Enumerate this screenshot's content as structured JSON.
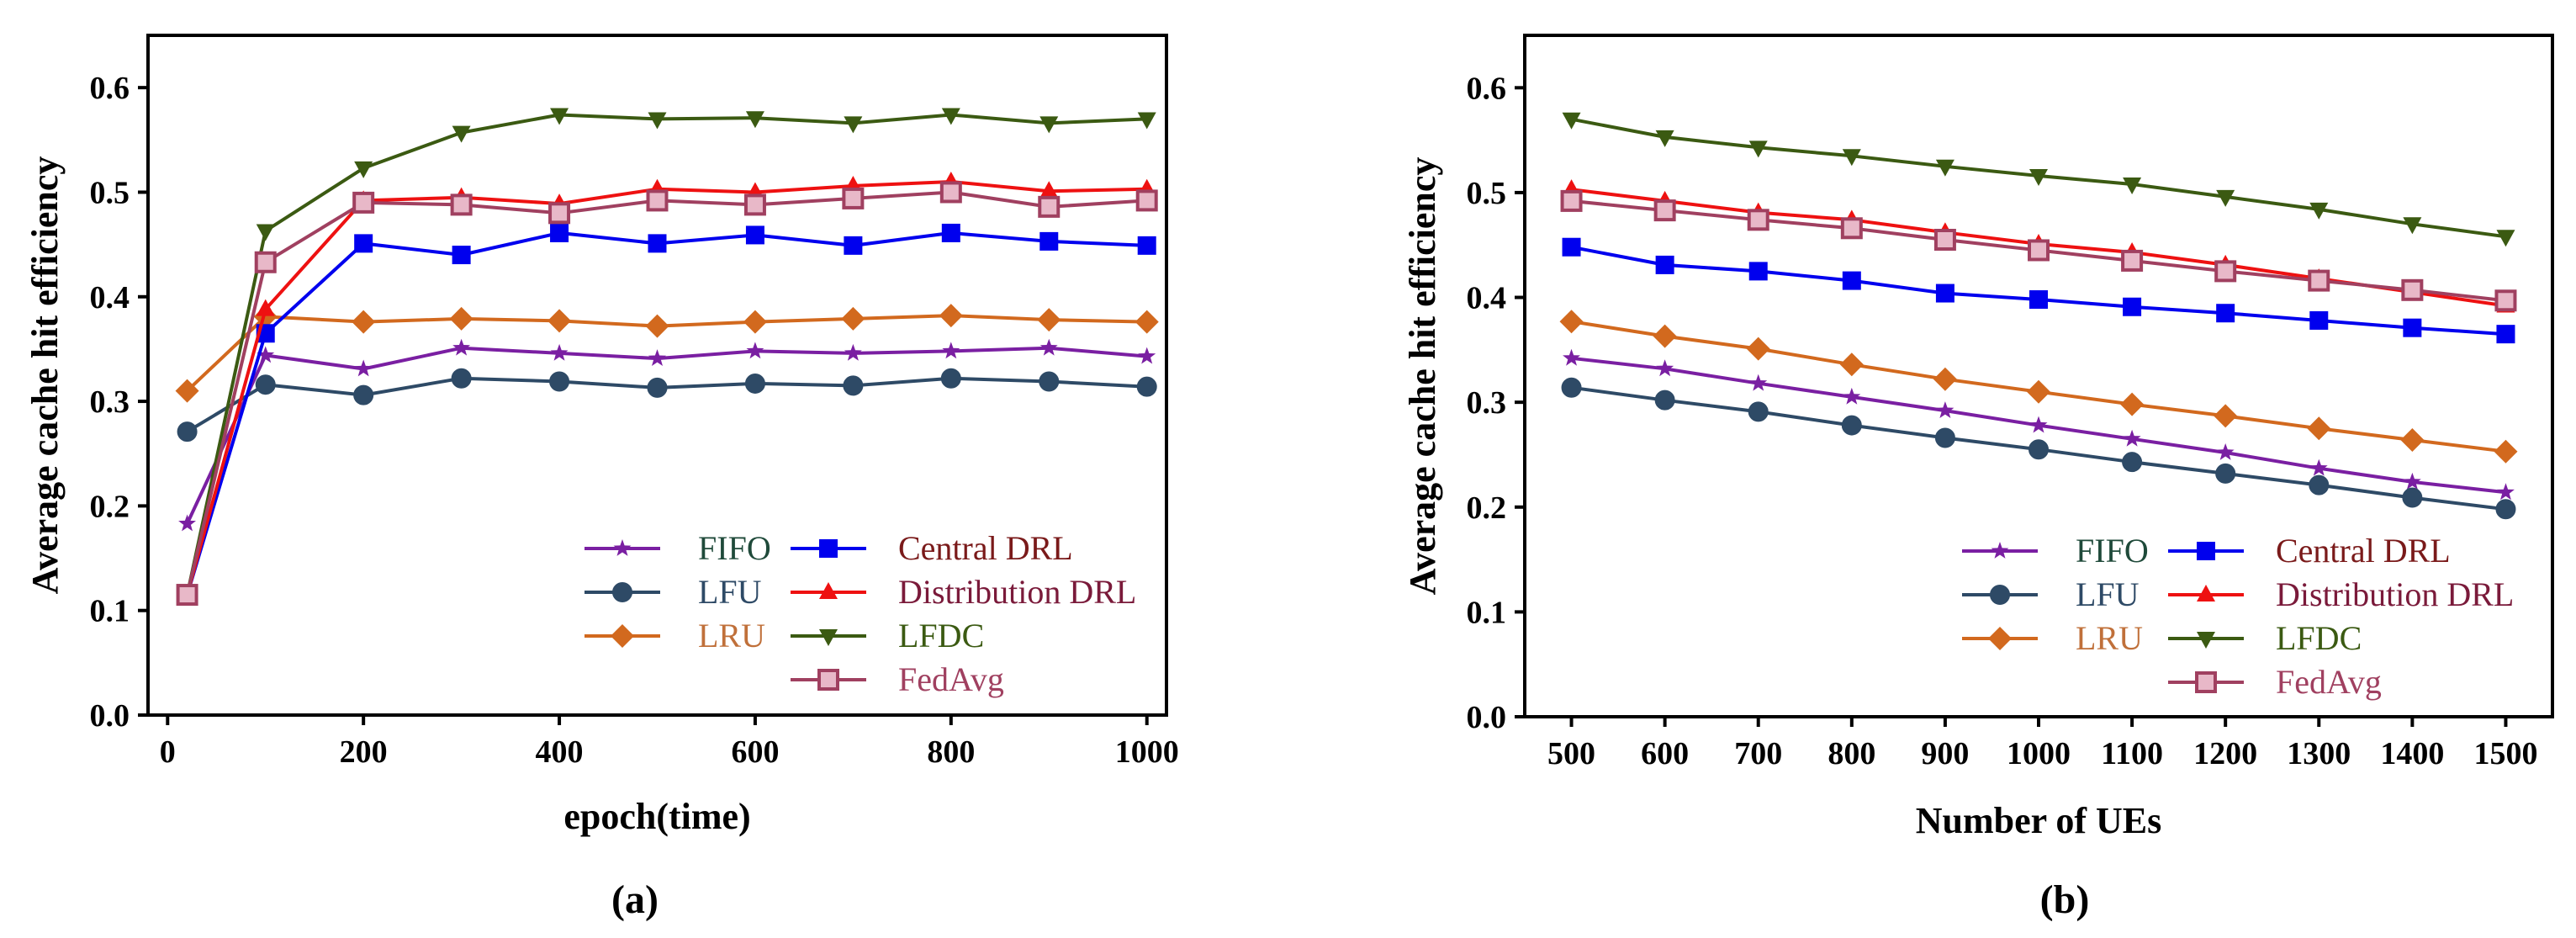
{
  "chart_data": [
    {
      "type": "line",
      "panel_label": "(a)",
      "xlabel": "epoch(time)",
      "ylabel": "Average cache hit efficiency",
      "xlim": [
        -20,
        1020
      ],
      "ylim": [
        0,
        0.65
      ],
      "xticks": [
        0,
        200,
        400,
        600,
        800,
        1000
      ],
      "xtick_labels": [
        "0",
        "200",
        "400",
        "600",
        "800",
        "1000"
      ],
      "yticks": [
        0,
        0.1,
        0.2,
        0.3,
        0.4,
        0.5,
        0.6
      ],
      "ytick_labels": [
        "0.0",
        "0.1",
        "0.2",
        "0.3",
        "0.4",
        "0.5",
        "0.6"
      ],
      "legend_position": "bottom-right",
      "x": [
        20,
        100,
        200,
        300,
        400,
        500,
        600,
        700,
        800,
        900,
        1000
      ],
      "series": [
        {
          "name": "FIFO",
          "color": "#7a1fa2",
          "marker": "star",
          "values": [
            0.183,
            0.344,
            0.331,
            0.351,
            0.346,
            0.341,
            0.348,
            0.346,
            0.348,
            0.351,
            0.343
          ]
        },
        {
          "name": "LFU",
          "color": "#2e4a66",
          "marker": "circle",
          "values": [
            0.271,
            0.316,
            0.306,
            0.322,
            0.319,
            0.313,
            0.317,
            0.315,
            0.322,
            0.319,
            0.314
          ]
        },
        {
          "name": "LRU",
          "color": "#d2691e",
          "marker": "diamond",
          "values": [
            0.31,
            0.381,
            0.376,
            0.379,
            0.377,
            0.372,
            0.376,
            0.379,
            0.382,
            0.378,
            0.376
          ]
        },
        {
          "name": "Central DRL",
          "color": "#0000ee",
          "marker": "square",
          "values": [
            0.115,
            0.365,
            0.451,
            0.44,
            0.461,
            0.451,
            0.459,
            0.449,
            0.461,
            0.453,
            0.449
          ]
        },
        {
          "name": "Distribution DRL",
          "color": "#ee1111",
          "marker": "triangle-up",
          "values": [
            0.115,
            0.388,
            0.492,
            0.495,
            0.489,
            0.503,
            0.5,
            0.506,
            0.51,
            0.501,
            0.503
          ]
        },
        {
          "name": "LFDC",
          "color": "#3b5a12",
          "marker": "triangle-down",
          "values": [
            0.115,
            0.463,
            0.523,
            0.557,
            0.574,
            0.57,
            0.571,
            0.566,
            0.574,
            0.566,
            0.57
          ]
        },
        {
          "name": "FedAvg",
          "color": "#a04060",
          "marker": "square-open",
          "values": [
            0.115,
            0.433,
            0.49,
            0.488,
            0.48,
            0.492,
            0.488,
            0.494,
            0.5,
            0.486,
            0.492
          ]
        }
      ]
    },
    {
      "type": "line",
      "panel_label": "(b)",
      "xlabel": "Number of UEs",
      "ylabel": "Average cache hit efficiency",
      "xlim": [
        450,
        1550
      ],
      "ylim": [
        0,
        0.65
      ],
      "xticks": [
        500,
        600,
        700,
        800,
        900,
        1000,
        1100,
        1200,
        1300,
        1400,
        1500
      ],
      "xtick_labels": [
        "500",
        "600",
        "700",
        "800",
        "900",
        "1000",
        "1100",
        "1200",
        "1300",
        "1400",
        "1500"
      ],
      "yticks": [
        0,
        0.1,
        0.2,
        0.3,
        0.4,
        0.5,
        0.6
      ],
      "ytick_labels": [
        "0.0",
        "0.1",
        "0.2",
        "0.3",
        "0.4",
        "0.5",
        "0.6"
      ],
      "legend_position": "bottom-right",
      "x": [
        500,
        600,
        700,
        800,
        900,
        1000,
        1100,
        1200,
        1300,
        1400,
        1500
      ],
      "series": [
        {
          "name": "FIFO",
          "color": "#7a1fa2",
          "marker": "star",
          "values": [
            0.342,
            0.332,
            0.318,
            0.305,
            0.292,
            0.278,
            0.265,
            0.252,
            0.237,
            0.224,
            0.214
          ]
        },
        {
          "name": "LFU",
          "color": "#2e4a66",
          "marker": "circle",
          "values": [
            0.314,
            0.302,
            0.291,
            0.278,
            0.266,
            0.255,
            0.243,
            0.232,
            0.221,
            0.209,
            0.198
          ]
        },
        {
          "name": "LRU",
          "color": "#d2691e",
          "marker": "diamond",
          "values": [
            0.377,
            0.363,
            0.351,
            0.336,
            0.322,
            0.31,
            0.298,
            0.287,
            0.275,
            0.264,
            0.253
          ]
        },
        {
          "name": "Central DRL",
          "color": "#0000ee",
          "marker": "square",
          "values": [
            0.448,
            0.431,
            0.425,
            0.416,
            0.404,
            0.398,
            0.391,
            0.385,
            0.378,
            0.371,
            0.365
          ]
        },
        {
          "name": "Distribution DRL",
          "color": "#ee1111",
          "marker": "triangle-up",
          "values": [
            0.503,
            0.492,
            0.481,
            0.474,
            0.462,
            0.451,
            0.443,
            0.431,
            0.418,
            0.405,
            0.392
          ]
        },
        {
          "name": "LFDC",
          "color": "#3b5a12",
          "marker": "triangle-down",
          "values": [
            0.57,
            0.553,
            0.543,
            0.535,
            0.525,
            0.516,
            0.508,
            0.496,
            0.484,
            0.47,
            0.458
          ]
        },
        {
          "name": "FedAvg",
          "color": "#a04060",
          "marker": "square-open",
          "values": [
            0.492,
            0.483,
            0.474,
            0.466,
            0.455,
            0.445,
            0.435,
            0.425,
            0.416,
            0.407,
            0.397
          ]
        }
      ]
    }
  ]
}
